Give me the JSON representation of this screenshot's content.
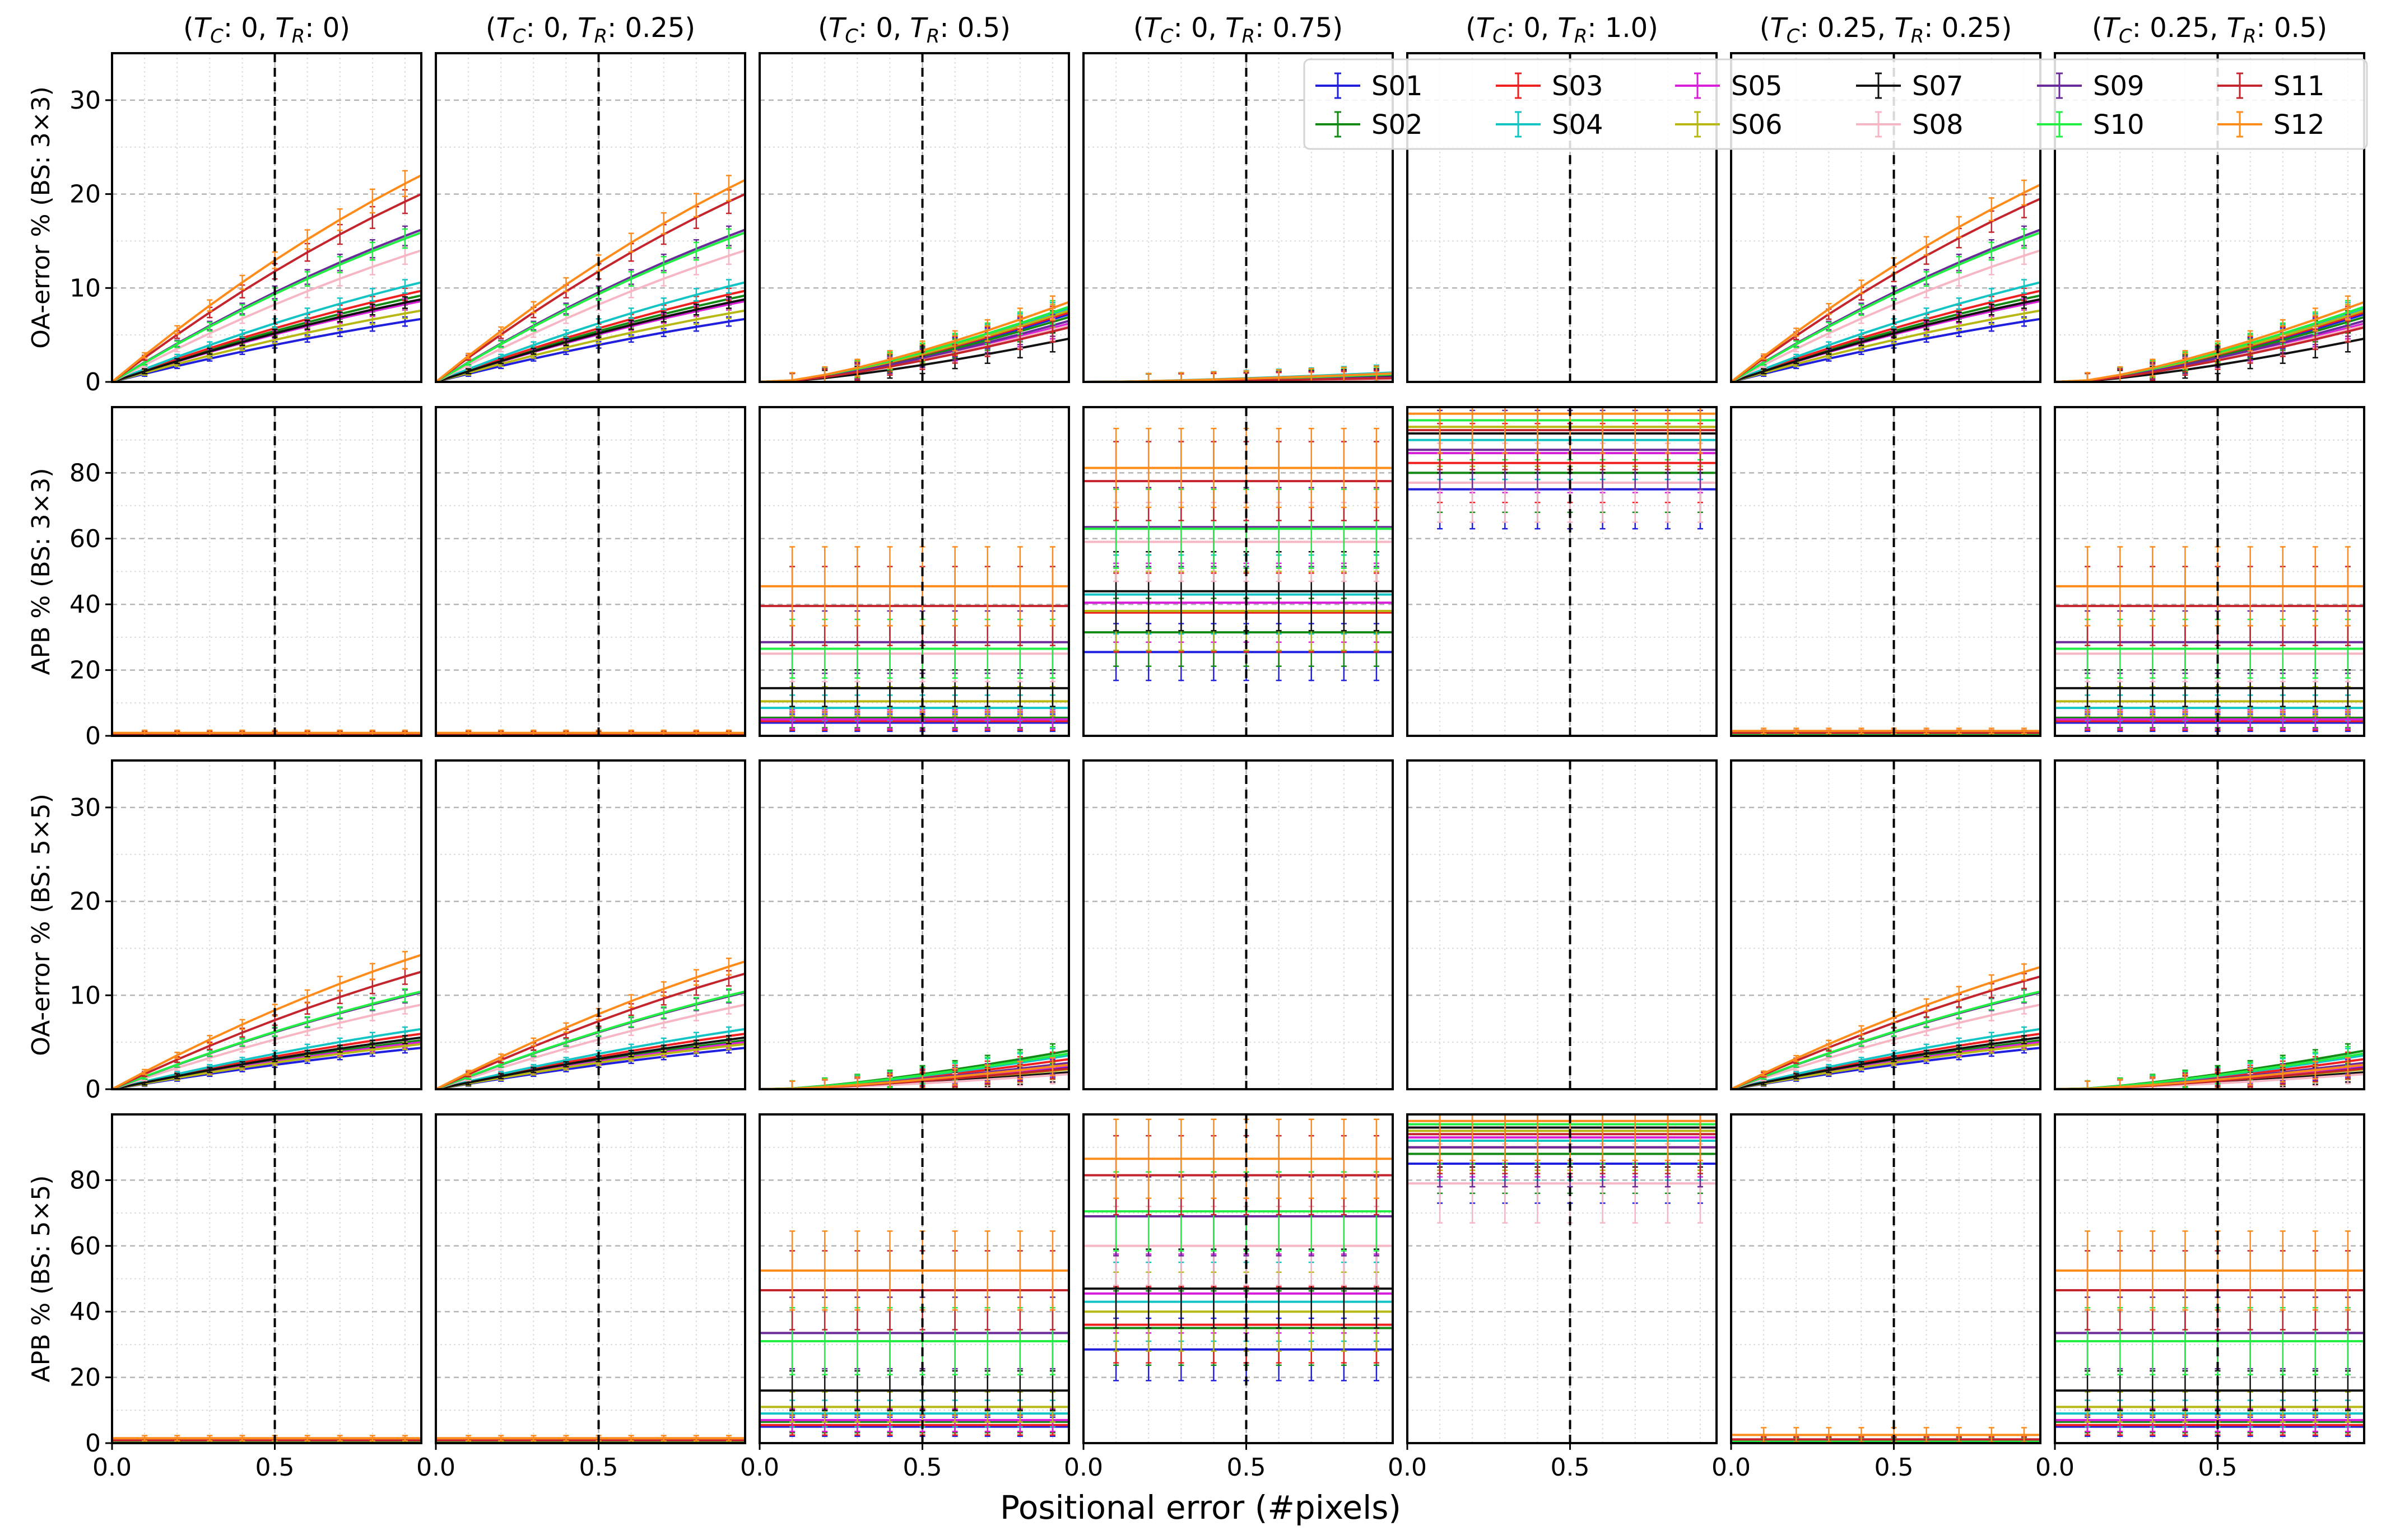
{
  "chart_data": {
    "type": "line",
    "title": "",
    "xlabel": "Positional error (#pixels)",
    "x_ticks": [
      "0.0",
      "0.5"
    ],
    "xlim": [
      0,
      0.95
    ],
    "marker_x": 0.5,
    "grid": true,
    "legend_position": "top-right",
    "columns": [
      {
        "tc": "0",
        "tr": "0"
      },
      {
        "tc": "0",
        "tr": "0.25"
      },
      {
        "tc": "0",
        "tr": "0.5"
      },
      {
        "tc": "0",
        "tr": "0.75"
      },
      {
        "tc": "0",
        "tr": "1.0"
      },
      {
        "tc": "0.25",
        "tr": "0.25"
      },
      {
        "tc": "0.25",
        "tr": "0.5"
      }
    ],
    "rows": [
      {
        "ylabel": "OA-error % (BS: 3×3)",
        "ylim": [
          0,
          35
        ],
        "yticks": [
          0,
          10,
          20,
          30
        ],
        "metric": "oa"
      },
      {
        "ylabel": "APB % (BS: 3×3)",
        "ylim": [
          0,
          100
        ],
        "yticks": [
          0,
          20,
          40,
          60,
          80
        ],
        "metric": "apb"
      },
      {
        "ylabel": "OA-error % (BS: 5×5)",
        "ylim": [
          0,
          35
        ],
        "yticks": [
          0,
          10,
          20,
          30
        ],
        "metric": "oa"
      },
      {
        "ylabel": "APB % (BS: 5×5)",
        "ylim": [
          0,
          100
        ],
        "yticks": [
          0,
          20,
          40,
          60,
          80
        ],
        "metric": "apb"
      }
    ],
    "series": [
      {
        "name": "S01",
        "color": "#1f1fdd"
      },
      {
        "name": "S02",
        "color": "#138a13"
      },
      {
        "name": "S03",
        "color": "#f02020"
      },
      {
        "name": "S04",
        "color": "#12c4c4"
      },
      {
        "name": "S05",
        "color": "#d81ed8"
      },
      {
        "name": "S06",
        "color": "#b8b814"
      },
      {
        "name": "S07",
        "color": "#111111"
      },
      {
        "name": "S08",
        "color": "#f7b6c4"
      },
      {
        "name": "S09",
        "color": "#6a2a9a"
      },
      {
        "name": "S10",
        "color": "#22ee44"
      },
      {
        "name": "S11",
        "color": "#c4242c"
      },
      {
        "name": "S12",
        "color": "#ff8c1a"
      }
    ],
    "panels": [
      [
        {
          "end": [
            6.7,
            9.2,
            9.7,
            10.6,
            8.6,
            7.6,
            8.8,
            14.0,
            16.2,
            15.9,
            20.0,
            22.0
          ]
        },
        {
          "end": [
            6.7,
            9.2,
            9.7,
            10.6,
            8.6,
            7.6,
            8.8,
            14.0,
            16.2,
            15.9,
            20.0,
            21.5
          ]
        },
        {
          "end": [
            7.2,
            6.9,
            7.4,
            7.8,
            6.2,
            7.6,
            4.6,
            6.0,
            6.5,
            8.0,
            5.8,
            8.5
          ]
        },
        {
          "end": [
            0.5,
            0.6,
            0.9,
            1.0,
            0.4,
            0.3,
            0.6,
            0.3,
            0.5,
            0.8,
            0.4,
            0.9
          ]
        },
        {
          "end": [
            0,
            0,
            0,
            0,
            0,
            0,
            0,
            0,
            0,
            0,
            0,
            0
          ]
        },
        {
          "end": [
            6.7,
            9.2,
            9.7,
            10.6,
            8.6,
            7.6,
            8.8,
            14.0,
            16.2,
            15.9,
            19.5,
            21.0
          ]
        },
        {
          "end": [
            7.2,
            6.9,
            7.4,
            7.8,
            6.2,
            7.6,
            4.6,
            6.0,
            6.5,
            8.0,
            5.8,
            8.5
          ]
        }
      ],
      [
        {
          "level": [
            0.3,
            0.3,
            0.4,
            0.5,
            0.3,
            0.4,
            0.6,
            0.8,
            0.5,
            0.4,
            0.6,
            0.9
          ]
        },
        {
          "level": [
            0.3,
            0.3,
            0.4,
            0.5,
            0.3,
            0.4,
            0.6,
            0.8,
            0.5,
            0.4,
            0.6,
            0.9
          ]
        },
        {
          "level": [
            4.0,
            5.5,
            4.5,
            8.5,
            5.0,
            10.5,
            14.5,
            25.0,
            28.5,
            26.5,
            39.5,
            45.5
          ]
        },
        {
          "level": [
            25.5,
            31.5,
            37.5,
            43.0,
            40.5,
            38.0,
            44.0,
            59.0,
            63.5,
            63.0,
            77.5,
            81.5
          ]
        },
        {
          "level": [
            75.0,
            80.0,
            83.0,
            90.0,
            86.0,
            94.0,
            92.0,
            77.0,
            87.0,
            96.0,
            93.0,
            98.0
          ]
        },
        {
          "level": [
            0.3,
            0.4,
            0.5,
            0.6,
            0.3,
            0.5,
            0.8,
            1.0,
            0.6,
            0.5,
            0.9,
            1.5
          ]
        },
        {
          "level": [
            4.0,
            5.5,
            4.5,
            8.5,
            5.0,
            10.5,
            14.5,
            25.0,
            28.5,
            26.5,
            39.5,
            45.5
          ]
        }
      ],
      [
        {
          "end": [
            4.4,
            5.2,
            5.9,
            6.4,
            5.0,
            4.8,
            5.5,
            9.0,
            10.3,
            10.4,
            12.5,
            14.3
          ]
        },
        {
          "end": [
            4.4,
            5.2,
            5.9,
            6.4,
            5.0,
            4.8,
            5.5,
            9.0,
            10.3,
            10.4,
            12.3,
            13.6
          ]
        },
        {
          "end": [
            2.4,
            4.1,
            3.2,
            3.6,
            2.5,
            2.1,
            1.8,
            1.6,
            2.8,
            3.8,
            2.2,
            2.6
          ]
        },
        {
          "end": [
            0,
            0,
            0,
            0,
            0,
            0,
            0,
            0,
            0,
            0,
            0,
            0
          ]
        },
        {
          "end": [
            0,
            0,
            0,
            0,
            0,
            0,
            0,
            0,
            0,
            0,
            0,
            0
          ]
        },
        {
          "end": [
            4.4,
            5.2,
            5.9,
            6.4,
            5.0,
            4.8,
            5.5,
            9.0,
            10.3,
            10.4,
            12.0,
            13.0
          ]
        },
        {
          "end": [
            2.4,
            4.1,
            3.2,
            3.6,
            2.5,
            2.1,
            1.8,
            1.6,
            2.8,
            3.8,
            2.2,
            2.6
          ]
        }
      ],
      [
        {
          "level": [
            0.3,
            0.4,
            0.5,
            0.6,
            0.3,
            0.4,
            0.7,
            0.9,
            0.5,
            0.4,
            0.8,
            1.5
          ]
        },
        {
          "level": [
            0.3,
            0.4,
            0.5,
            0.6,
            0.3,
            0.4,
            0.7,
            0.9,
            0.5,
            0.4,
            0.8,
            1.5
          ]
        },
        {
          "level": [
            5.0,
            6.5,
            5.5,
            9.0,
            7.0,
            11.0,
            16.0,
            33.5,
            33.5,
            31.0,
            46.5,
            52.5
          ]
        },
        {
          "level": [
            28.5,
            35.0,
            36.0,
            43.0,
            45.5,
            40.0,
            47.0,
            60.0,
            69.0,
            70.5,
            81.5,
            86.5
          ]
        },
        {
          "level": [
            85.0,
            88.0,
            90.0,
            92.0,
            93.0,
            95.0,
            96.0,
            79.0,
            90.0,
            97.0,
            94.0,
            98.0
          ]
        },
        {
          "level": [
            0.4,
            0.5,
            0.6,
            0.7,
            0.4,
            0.5,
            0.9,
            1.2,
            0.7,
            0.6,
            1.1,
            2.5
          ]
        },
        {
          "level": [
            5.0,
            6.5,
            5.5,
            9.0,
            7.0,
            11.0,
            16.0,
            33.5,
            33.5,
            31.0,
            46.5,
            52.5
          ]
        }
      ]
    ]
  }
}
